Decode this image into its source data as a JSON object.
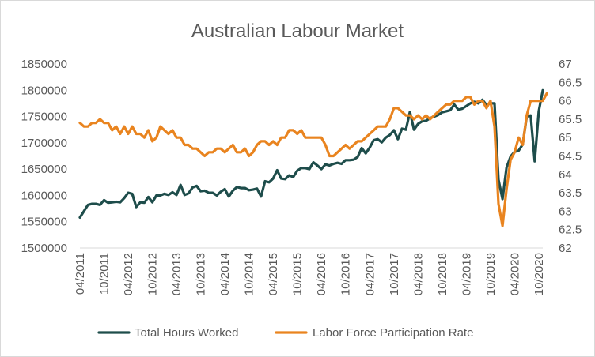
{
  "chart_data": {
    "type": "line",
    "title": "Australian Labour Market",
    "x_tick_labels": [
      "04/2011",
      "10/2011",
      "04/2012",
      "10/2012",
      "04/2013",
      "10/2013",
      "04/2014",
      "10/2014",
      "04/2015",
      "10/2015",
      "04/2016",
      "10/2016",
      "04/2017",
      "10/2017",
      "04/2018",
      "10/2018",
      "04/2019",
      "10/2019",
      "04/2020",
      "10/2020"
    ],
    "y_left": {
      "min": 1500000,
      "max": 1850000,
      "step": 50000,
      "ticks": [
        "1500000",
        "1550000",
        "1600000",
        "1650000",
        "1700000",
        "1750000",
        "1800000",
        "1850000"
      ]
    },
    "y_right": {
      "min": 62,
      "max": 67,
      "step": 0.5,
      "ticks": [
        "62",
        "62.5",
        "63",
        "63.5",
        "64",
        "64.5",
        "65",
        "65.5",
        "66",
        "66.5",
        "67"
      ]
    },
    "series": [
      {
        "name": "Total Hours Worked",
        "axis": "left",
        "color": "#1e4d4b",
        "start": "04/2011",
        "frequency": "monthly",
        "values": [
          1558000,
          1570000,
          1582000,
          1584000,
          1584000,
          1582000,
          1591000,
          1586000,
          1587000,
          1588000,
          1587000,
          1595000,
          1605000,
          1603000,
          1578000,
          1587000,
          1586000,
          1597000,
          1587000,
          1600000,
          1600000,
          1603000,
          1601000,
          1606000,
          1601000,
          1620000,
          1601000,
          1604000,
          1615000,
          1618000,
          1608000,
          1609000,
          1605000,
          1605000,
          1600000,
          1607000,
          1612000,
          1598000,
          1609000,
          1616000,
          1614000,
          1614000,
          1610000,
          1611000,
          1613000,
          1598000,
          1627000,
          1625000,
          1632000,
          1648000,
          1632000,
          1631000,
          1638000,
          1635000,
          1647000,
          1652000,
          1652000,
          1650000,
          1663000,
          1657000,
          1650000,
          1659000,
          1657000,
          1660000,
          1662000,
          1660000,
          1667000,
          1667000,
          1668000,
          1673000,
          1690000,
          1680000,
          1691000,
          1705000,
          1707000,
          1701000,
          1710000,
          1715000,
          1724000,
          1707000,
          1727000,
          1725000,
          1759000,
          1725000,
          1736000,
          1741000,
          1742000,
          1747000,
          1750000,
          1753000,
          1758000,
          1760000,
          1762000,
          1773000,
          1763000,
          1765000,
          1770000,
          1775000,
          1778000,
          1775000,
          1782000,
          1772000,
          1775000,
          1775000,
          1630000,
          1593000,
          1653000,
          1674000,
          1683000,
          1685000,
          1697000,
          1750000,
          1752000,
          1665000,
          1760000,
          1800000
        ]
      },
      {
        "name": "Labor Force Participation Rate",
        "axis": "right",
        "color": "#e9841f",
        "start": "04/2011",
        "frequency": "monthly",
        "values": [
          65.4,
          65.3,
          65.3,
          65.4,
          65.4,
          65.5,
          65.4,
          65.4,
          65.2,
          65.3,
          65.1,
          65.3,
          65.1,
          65.3,
          65.1,
          65.1,
          65.0,
          65.2,
          64.9,
          65.0,
          65.3,
          65.2,
          65.1,
          65.2,
          65.0,
          65.0,
          64.8,
          64.8,
          64.7,
          64.7,
          64.6,
          64.5,
          64.6,
          64.6,
          64.7,
          64.7,
          64.6,
          64.7,
          64.8,
          64.6,
          64.6,
          64.7,
          64.5,
          64.6,
          64.8,
          64.9,
          64.9,
          64.8,
          64.9,
          64.8,
          65.0,
          65.0,
          65.2,
          65.2,
          65.1,
          65.2,
          65.0,
          65.0,
          65.0,
          65.0,
          65.0,
          64.8,
          64.5,
          64.5,
          64.6,
          64.7,
          64.8,
          64.7,
          64.8,
          64.9,
          64.9,
          65.0,
          65.1,
          65.2,
          65.3,
          65.3,
          65.3,
          65.5,
          65.8,
          65.8,
          65.7,
          65.6,
          65.6,
          65.5,
          65.6,
          65.5,
          65.6,
          65.5,
          65.6,
          65.7,
          65.8,
          65.9,
          65.9,
          66.0,
          66.0,
          66.0,
          66.1,
          66.1,
          65.9,
          66.0,
          66.0,
          65.8,
          66.0,
          65.3,
          63.2,
          62.6,
          63.6,
          64.4,
          64.6,
          65.0,
          64.8,
          65.6,
          66.0,
          66.0,
          66.0,
          66.0,
          66.2
        ]
      }
    ],
    "legend": {
      "position": "bottom"
    },
    "grid": {
      "horizontal": false,
      "vertical": false
    }
  }
}
